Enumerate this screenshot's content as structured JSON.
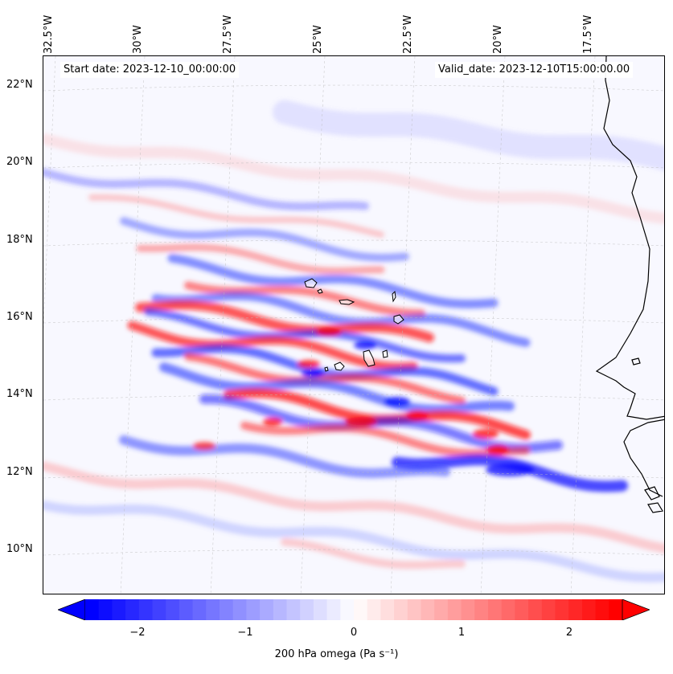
{
  "map": {
    "title_left": "Start date: 2023-12-10_00:00:00",
    "title_right": "Valid_date: 2023-12-10T15:00:00.00",
    "lon_labels": [
      "32.5°W",
      "30°W",
      "27.5°W",
      "25°W",
      "22.5°W",
      "20°W",
      "17.5°W"
    ],
    "lat_labels": [
      "22°N",
      "20°N",
      "18°N",
      "16°N",
      "14°N",
      "12°N",
      "10°N"
    ],
    "extent": {
      "lon_min": -32.5,
      "lon_max": -15.5,
      "lat_min": 8.8,
      "lat_max": 22.8
    },
    "colors": {
      "positive": "#ff0000",
      "negative": "#0000ff",
      "neutral": "#ffffff",
      "coast": "#000000"
    }
  },
  "colorbar": {
    "label": "200 hPa omega (Pa s⁻¹)",
    "ticks": [
      "−2",
      "−1",
      "0",
      "1",
      "2"
    ],
    "range": [
      -2.75,
      2.75
    ],
    "cmap": "bwr"
  }
}
